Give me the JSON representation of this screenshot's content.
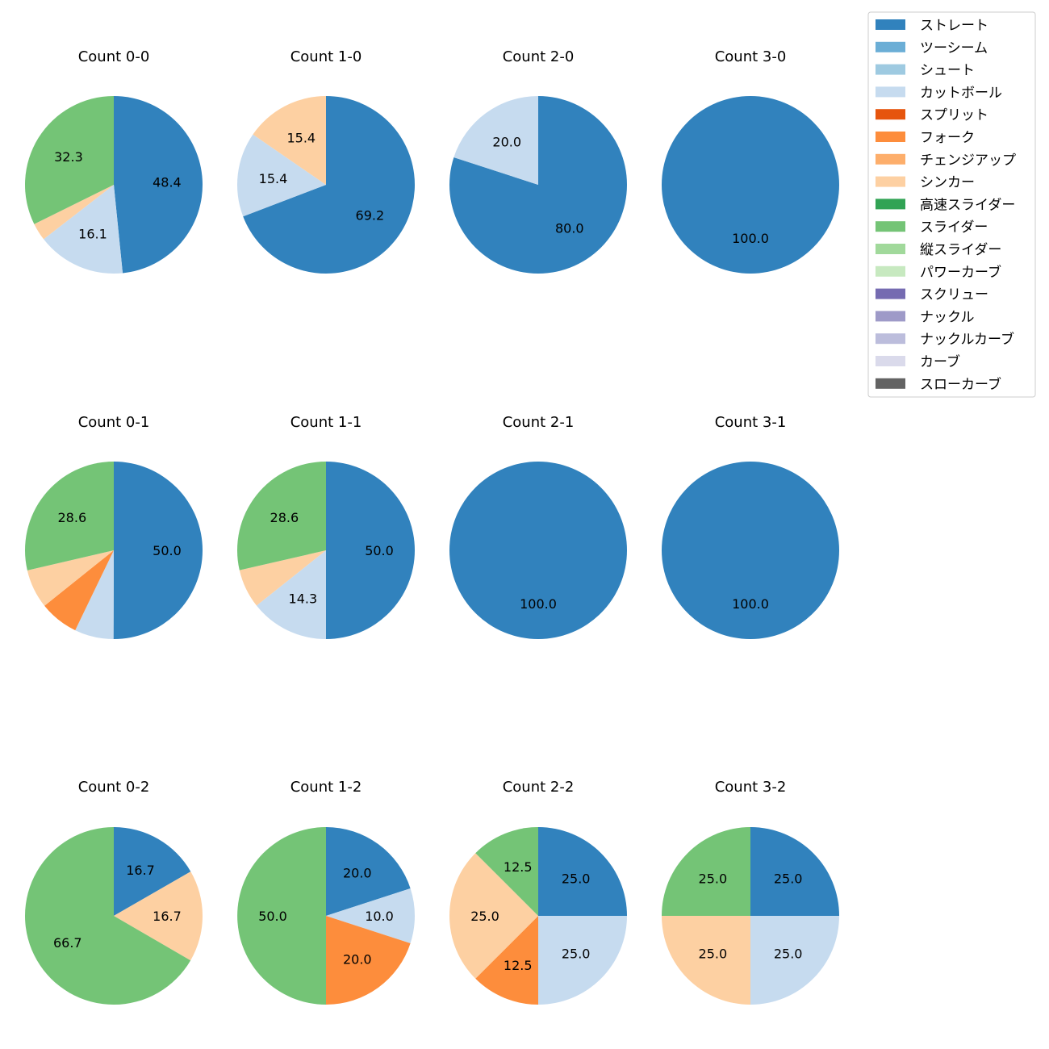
{
  "legend": {
    "entries": [
      {
        "label": "ストレート",
        "color": "#3182bd"
      },
      {
        "label": "ツーシーム",
        "color": "#6baed6"
      },
      {
        "label": "シュート",
        "color": "#9ecae1"
      },
      {
        "label": "カットボール",
        "color": "#c6dbef"
      },
      {
        "label": "スプリット",
        "color": "#e6550d"
      },
      {
        "label": "フォーク",
        "color": "#fd8d3c"
      },
      {
        "label": "チェンジアップ",
        "color": "#fdae6b"
      },
      {
        "label": "シンカー",
        "color": "#fdd0a2"
      },
      {
        "label": "高速スライダー",
        "color": "#31a354"
      },
      {
        "label": "スライダー",
        "color": "#74c476"
      },
      {
        "label": "縦スライダー",
        "color": "#a1d99b"
      },
      {
        "label": "パワーカーブ",
        "color": "#c7e9c0"
      },
      {
        "label": "スクリュー",
        "color": "#756bb1"
      },
      {
        "label": "ナックル",
        "color": "#9e9ac8"
      },
      {
        "label": "ナックルカーブ",
        "color": "#bcbddc"
      },
      {
        "label": "カーブ",
        "color": "#dadaeb"
      },
      {
        "label": "スローカーブ",
        "color": "#636363"
      }
    ]
  },
  "chart_data": [
    {
      "type": "pie",
      "title": "Count 0-0",
      "slices": [
        {
          "label": "ストレート",
          "value": 48.4,
          "text": "48.4"
        },
        {
          "label": "カットボール",
          "value": 16.1,
          "text": "16.1"
        },
        {
          "label": "シンカー",
          "value": 3.2,
          "text": ""
        },
        {
          "label": "スライダー",
          "value": 32.3,
          "text": "32.3"
        }
      ]
    },
    {
      "type": "pie",
      "title": "Count 1-0",
      "slices": [
        {
          "label": "ストレート",
          "value": 69.2,
          "text": "69.2"
        },
        {
          "label": "カットボール",
          "value": 15.4,
          "text": "15.4"
        },
        {
          "label": "シンカー",
          "value": 15.4,
          "text": "15.4"
        }
      ]
    },
    {
      "type": "pie",
      "title": "Count 2-0",
      "slices": [
        {
          "label": "ストレート",
          "value": 80.0,
          "text": "80.0"
        },
        {
          "label": "カットボール",
          "value": 20.0,
          "text": "20.0"
        }
      ]
    },
    {
      "type": "pie",
      "title": "Count 3-0",
      "slices": [
        {
          "label": "ストレート",
          "value": 100.0,
          "text": "100.0"
        }
      ]
    },
    {
      "type": "pie",
      "title": "Count 0-1",
      "slices": [
        {
          "label": "ストレート",
          "value": 50.0,
          "text": "50.0"
        },
        {
          "label": "カットボール",
          "value": 7.1,
          "text": ""
        },
        {
          "label": "フォーク",
          "value": 7.1,
          "text": ""
        },
        {
          "label": "シンカー",
          "value": 7.1,
          "text": ""
        },
        {
          "label": "スライダー",
          "value": 28.6,
          "text": "28.6"
        }
      ]
    },
    {
      "type": "pie",
      "title": "Count 1-1",
      "slices": [
        {
          "label": "ストレート",
          "value": 50.0,
          "text": "50.0"
        },
        {
          "label": "カットボール",
          "value": 14.3,
          "text": "14.3"
        },
        {
          "label": "シンカー",
          "value": 7.1,
          "text": ""
        },
        {
          "label": "スライダー",
          "value": 28.6,
          "text": "28.6"
        }
      ]
    },
    {
      "type": "pie",
      "title": "Count 2-1",
      "slices": [
        {
          "label": "ストレート",
          "value": 100.0,
          "text": "100.0"
        }
      ]
    },
    {
      "type": "pie",
      "title": "Count 3-1",
      "slices": [
        {
          "label": "ストレート",
          "value": 100.0,
          "text": "100.0"
        }
      ]
    },
    {
      "type": "pie",
      "title": "Count 0-2",
      "slices": [
        {
          "label": "ストレート",
          "value": 16.7,
          "text": "16.7"
        },
        {
          "label": "シンカー",
          "value": 16.7,
          "text": "16.7"
        },
        {
          "label": "スライダー",
          "value": 66.7,
          "text": "66.7"
        }
      ]
    },
    {
      "type": "pie",
      "title": "Count 1-2",
      "slices": [
        {
          "label": "ストレート",
          "value": 20.0,
          "text": "20.0"
        },
        {
          "label": "カットボール",
          "value": 10.0,
          "text": "10.0"
        },
        {
          "label": "フォーク",
          "value": 20.0,
          "text": "20.0"
        },
        {
          "label": "スライダー",
          "value": 50.0,
          "text": "50.0"
        }
      ]
    },
    {
      "type": "pie",
      "title": "Count 2-2",
      "slices": [
        {
          "label": "ストレート",
          "value": 25.0,
          "text": "25.0"
        },
        {
          "label": "カットボール",
          "value": 25.0,
          "text": "25.0"
        },
        {
          "label": "フォーク",
          "value": 12.5,
          "text": "12.5"
        },
        {
          "label": "シンカー",
          "value": 25.0,
          "text": "25.0"
        },
        {
          "label": "スライダー",
          "value": 12.5,
          "text": "12.5"
        }
      ]
    },
    {
      "type": "pie",
      "title": "Count 3-2",
      "slices": [
        {
          "label": "ストレート",
          "value": 25.0,
          "text": "25.0"
        },
        {
          "label": "カットボール",
          "value": 25.0,
          "text": "25.0"
        },
        {
          "label": "シンカー",
          "value": 25.0,
          "text": "25.0"
        },
        {
          "label": "スライダー",
          "value": 25.0,
          "text": "25.0"
        }
      ]
    }
  ]
}
